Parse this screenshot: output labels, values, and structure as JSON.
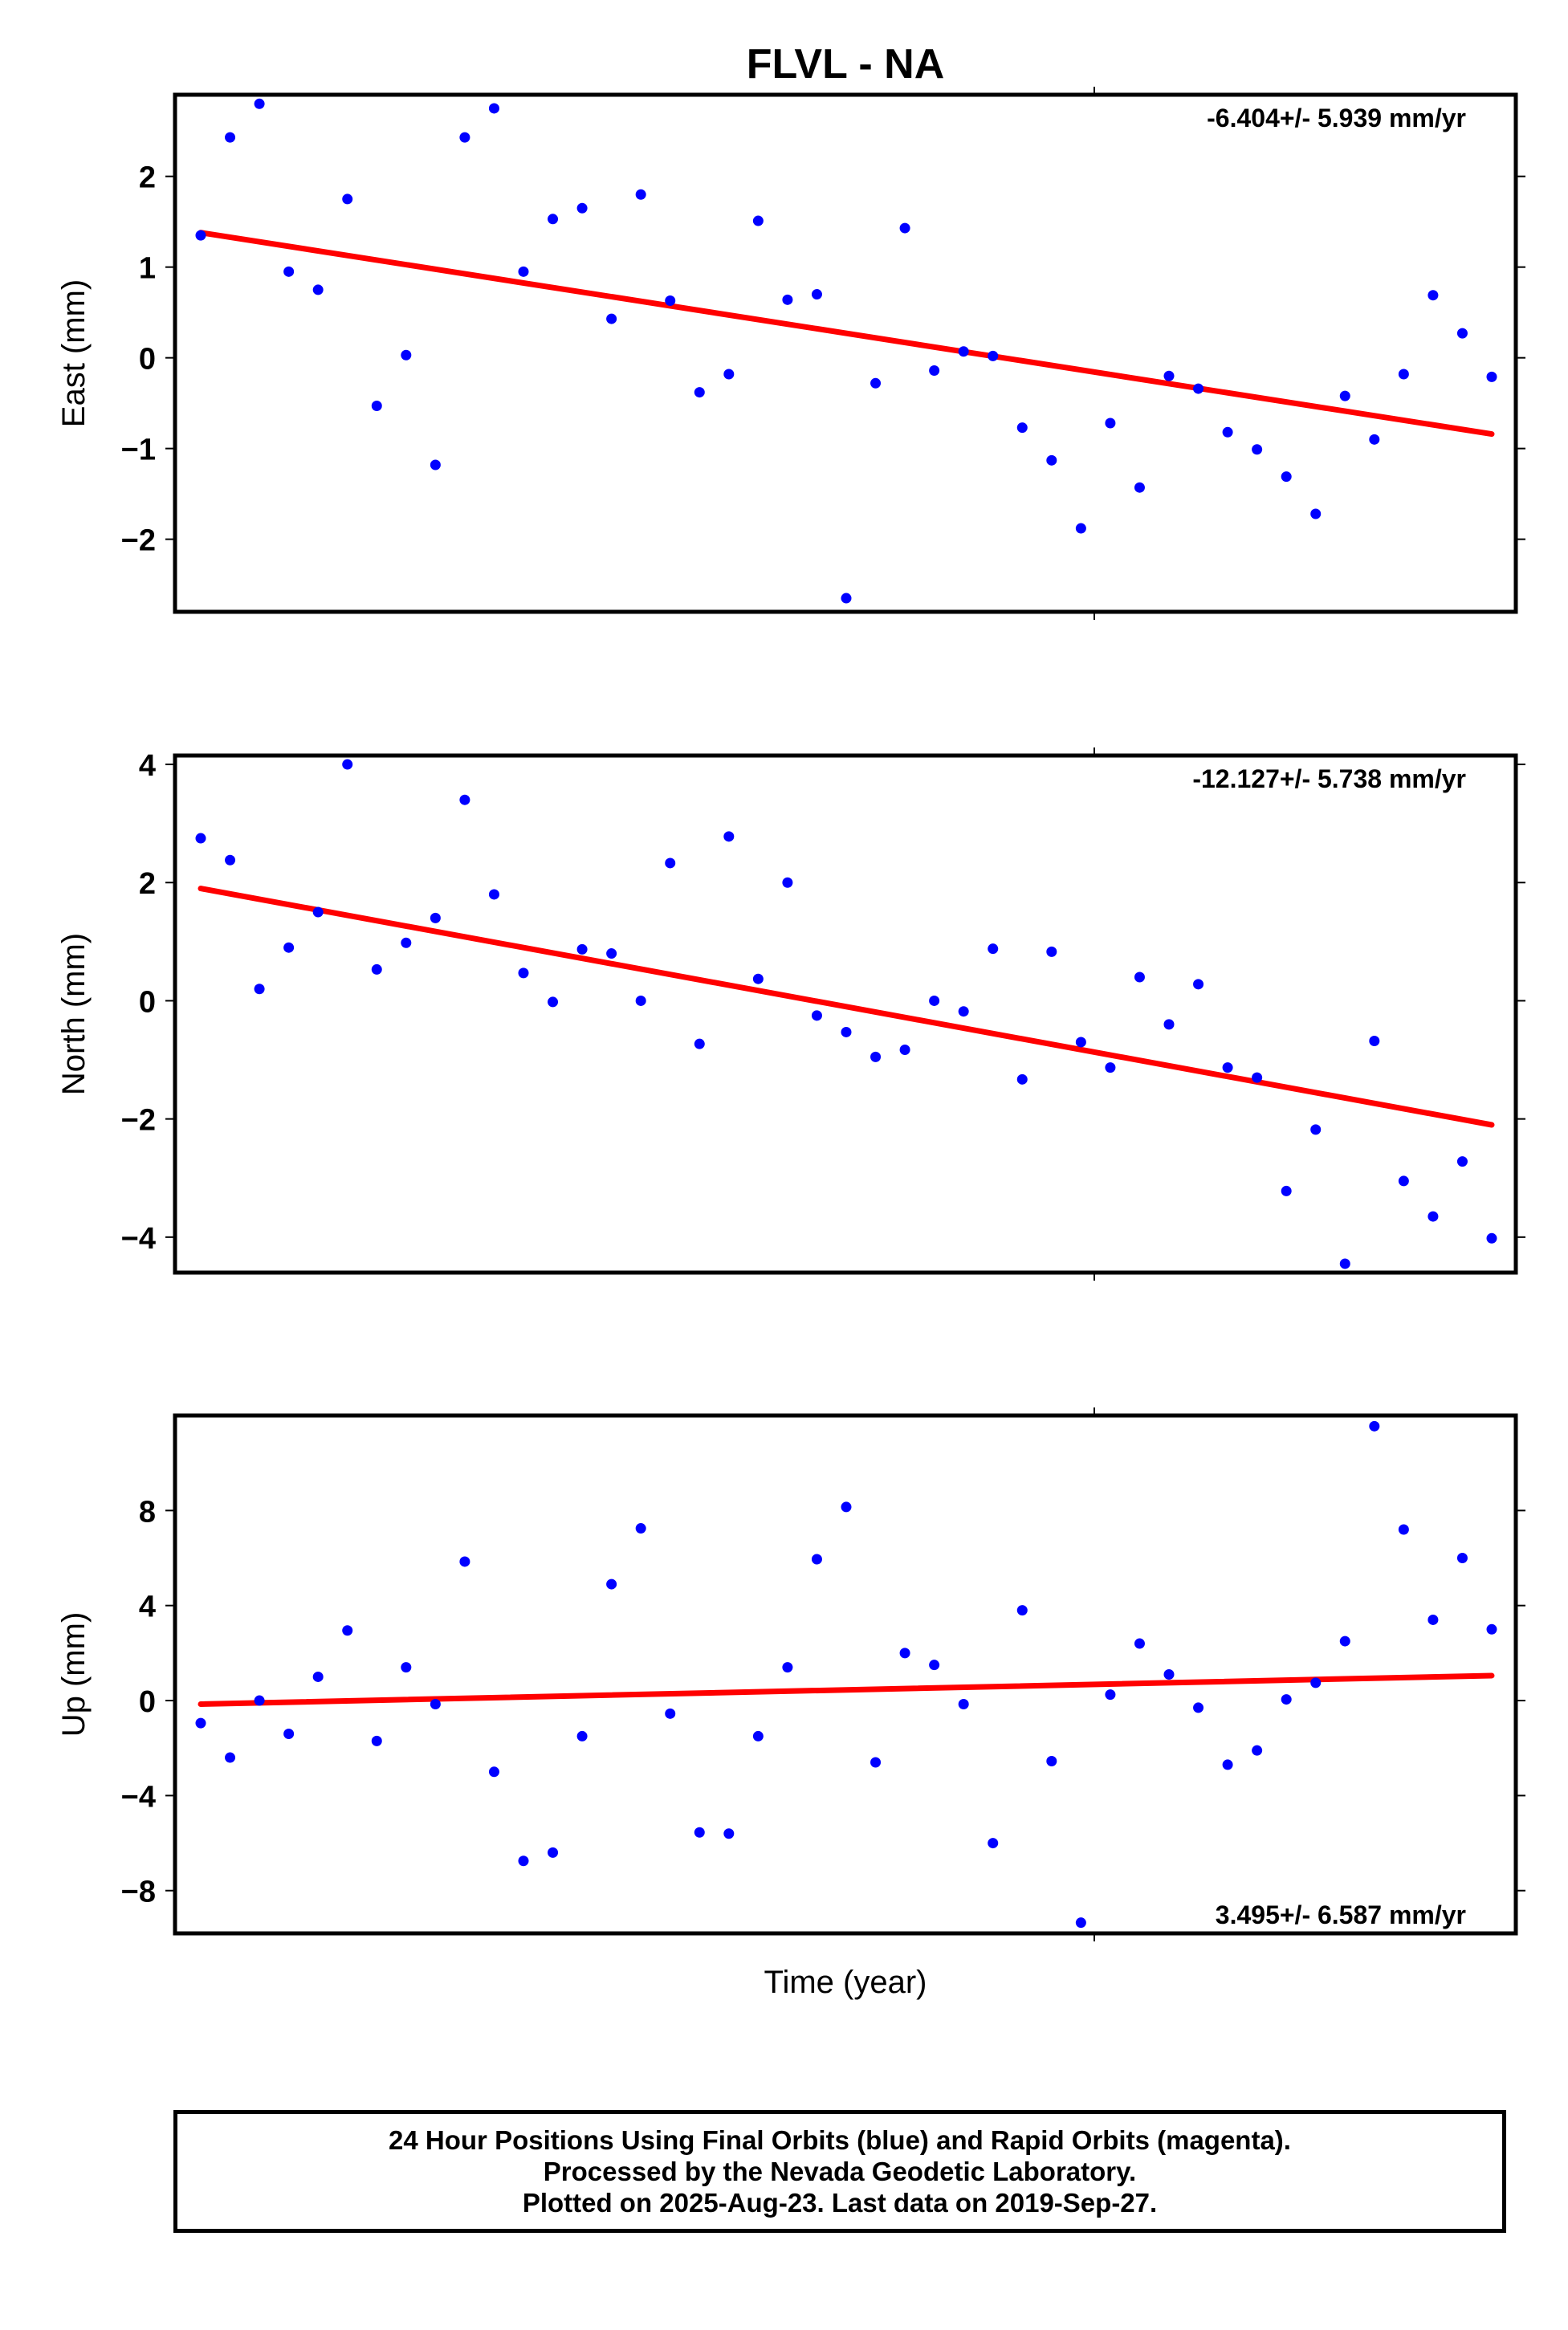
{
  "title": "FLVL - NA",
  "xlabel": "Time (year)",
  "colors": {
    "points": "#0000ff",
    "trend": "#ff0000",
    "frame": "#000000"
  },
  "chart_data": [
    {
      "type": "scatter",
      "ylabel": "East (mm)",
      "rate_text": "-6.404+/- 5.939 mm/yr",
      "rate_position": "top-right",
      "ylim": [
        -2.8,
        2.9
      ],
      "yticks": [
        2,
        1,
        0,
        -1,
        -2
      ],
      "ytick_labels": [
        "2",
        "1",
        "0",
        "−1",
        "−2"
      ],
      "x": [
        0,
        1,
        2,
        3,
        4,
        5,
        6,
        7,
        8,
        9,
        10,
        11,
        12,
        13,
        14,
        15,
        16,
        17,
        18,
        19,
        20,
        21,
        22,
        23,
        24,
        25,
        26,
        27,
        28,
        29,
        30,
        31,
        32,
        33,
        34,
        35,
        36,
        37,
        38,
        39,
        40,
        41,
        42,
        43,
        44
      ],
      "values": [
        1.35,
        2.43,
        2.8,
        0.95,
        0.75,
        1.75,
        -0.53,
        0.03,
        -1.18,
        2.43,
        2.75,
        0.95,
        1.53,
        1.65,
        0.43,
        1.8,
        0.63,
        -0.38,
        -0.18,
        1.51,
        0.64,
        0.7,
        -2.65,
        -0.28,
        1.43,
        -0.14,
        0.07,
        0.02,
        -0.77,
        -1.13,
        -1.88,
        -0.72,
        -1.43,
        -0.2,
        -0.34,
        -0.82,
        -1.01,
        -1.31,
        -1.72,
        -0.42,
        -0.9,
        -0.18,
        0.69,
        0.27,
        -0.21
      ],
      "trend": {
        "start": 1.38,
        "end": -0.84
      }
    },
    {
      "type": "scatter",
      "ylabel": "North (mm)",
      "rate_text": "-12.127+/- 5.738 mm/yr",
      "rate_position": "top-right",
      "ylim": [
        -4.6,
        4.15
      ],
      "yticks": [
        4,
        2,
        0,
        -2,
        -4
      ],
      "ytick_labels": [
        "4",
        "2",
        "0",
        "−2",
        "−4"
      ],
      "x": [
        0,
        1,
        2,
        3,
        4,
        5,
        6,
        7,
        8,
        9,
        10,
        11,
        12,
        13,
        14,
        15,
        16,
        17,
        18,
        19,
        20,
        21,
        22,
        23,
        24,
        25,
        26,
        27,
        28,
        29,
        30,
        31,
        32,
        33,
        34,
        35,
        36,
        37,
        38,
        39,
        40,
        41,
        42,
        43,
        44
      ],
      "values": [
        2.75,
        2.38,
        0.2,
        0.9,
        1.5,
        4.0,
        0.53,
        0.98,
        1.4,
        3.4,
        1.8,
        0.47,
        -0.02,
        0.87,
        0.8,
        0.0,
        2.33,
        -0.73,
        2.78,
        0.37,
        2.0,
        -0.25,
        -0.53,
        -0.95,
        -0.83,
        0.0,
        -0.18,
        0.88,
        -1.33,
        0.83,
        -0.7,
        -1.13,
        0.4,
        -0.4,
        0.28,
        -1.13,
        -1.3,
        -3.22,
        -2.18,
        -4.45,
        -0.68,
        -3.05,
        -3.65,
        -2.72,
        -4.02
      ],
      "trend": {
        "start": 1.9,
        "end": -2.1
      }
    },
    {
      "type": "scatter",
      "ylabel": "Up (mm)",
      "rate_text": "3.495+/- 6.587 mm/yr",
      "rate_position": "bottom-right",
      "ylim": [
        -9.8,
        12.0
      ],
      "yticks": [
        8,
        4,
        0,
        -4,
        -8
      ],
      "ytick_labels": [
        "8",
        "4",
        "0",
        "−4",
        "−8"
      ],
      "x": [
        0,
        1,
        2,
        3,
        4,
        5,
        6,
        7,
        8,
        9,
        10,
        11,
        12,
        13,
        14,
        15,
        16,
        17,
        18,
        19,
        20,
        21,
        22,
        23,
        24,
        25,
        26,
        27,
        28,
        29,
        30,
        31,
        32,
        33,
        34,
        35,
        36,
        37,
        38,
        39,
        40,
        41,
        42,
        43,
        44
      ],
      "values": [
        -0.95,
        -2.4,
        0.0,
        -1.4,
        1.0,
        2.95,
        -1.7,
        1.4,
        -0.15,
        5.85,
        -3.0,
        -6.75,
        -6.4,
        -1.5,
        4.9,
        7.25,
        -0.55,
        -5.55,
        -5.6,
        -1.5,
        1.4,
        5.95,
        8.15,
        -2.6,
        2.0,
        1.5,
        -0.15,
        -6.0,
        3.8,
        -2.55,
        -9.35,
        0.25,
        2.4,
        1.1,
        -0.3,
        -2.7,
        -2.1,
        0.05,
        0.75,
        2.5,
        11.55,
        7.2,
        3.4,
        6.0,
        3.0
      ],
      "trend": {
        "start": -0.15,
        "end": 1.05
      }
    }
  ],
  "footer": {
    "line1": "24 Hour Positions Using Final Orbits (blue) and Rapid Orbits (magenta).",
    "line2": "Processed by the Nevada Geodetic Laboratory.",
    "line3": "Plotted on 2025-Aug-23. Last data on 2019-Sep-27."
  }
}
